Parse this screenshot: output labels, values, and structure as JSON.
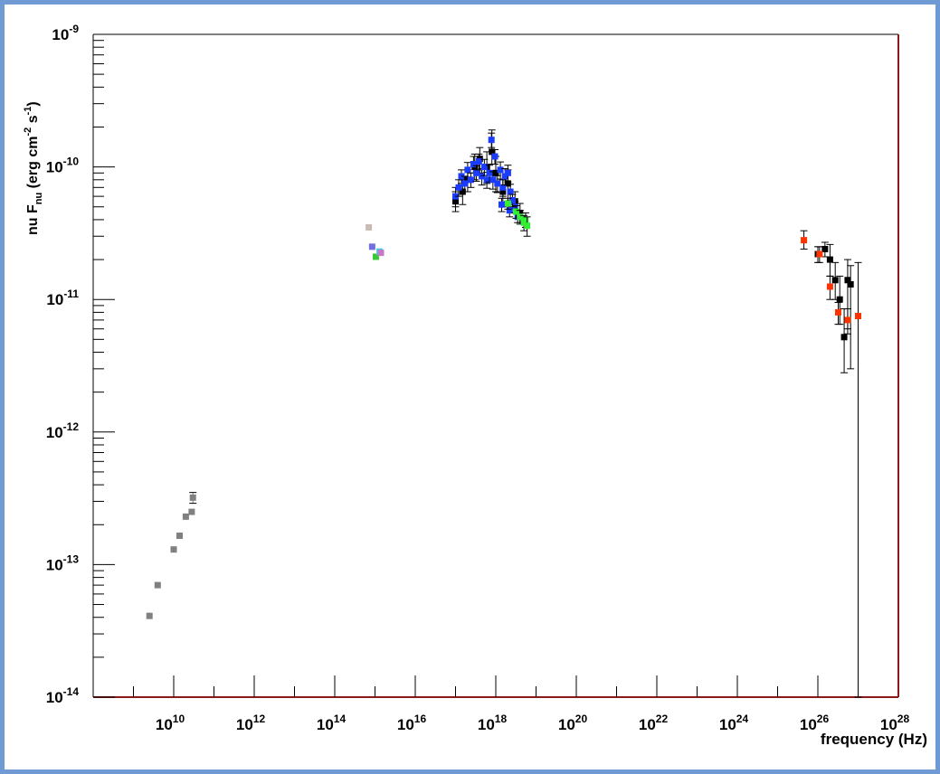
{
  "chart_data": {
    "type": "scatter",
    "xlabel": "frequency (Hz)",
    "ylabel": "nu F_nu (erg cm^-2 s^-1)",
    "xscale": "log",
    "yscale": "log",
    "xlim": [
      100000000.0,
      1e+28
    ],
    "ylim": [
      1e-14,
      1e-09
    ],
    "x_tick_labels": [
      {
        "exp": 10,
        "label": "10",
        "sup": "10"
      },
      {
        "exp": 12,
        "label": "10",
        "sup": "12"
      },
      {
        "exp": 14,
        "label": "10",
        "sup": "14"
      },
      {
        "exp": 16,
        "label": "10",
        "sup": "16"
      },
      {
        "exp": 18,
        "label": "10",
        "sup": "18"
      },
      {
        "exp": 20,
        "label": "10",
        "sup": "20"
      },
      {
        "exp": 22,
        "label": "10",
        "sup": "22"
      },
      {
        "exp": 24,
        "label": "10",
        "sup": "24"
      },
      {
        "exp": 26,
        "label": "10",
        "sup": "26"
      },
      {
        "exp": 28,
        "label": "10",
        "sup": "28"
      }
    ],
    "y_tick_labels": [
      {
        "exp": -14,
        "label": "10",
        "sup": "-14"
      },
      {
        "exp": -13,
        "label": "10",
        "sup": "-13"
      },
      {
        "exp": -12,
        "label": "10",
        "sup": "-12"
      },
      {
        "exp": -11,
        "label": "10",
        "sup": "-11"
      },
      {
        "exp": -10,
        "label": "10",
        "sup": "-10"
      },
      {
        "exp": -9,
        "label": "10",
        "sup": "-9"
      }
    ],
    "series": [
      {
        "color": "#808080",
        "points": [
          {
            "x": 2500000000.0,
            "y": 4.1e-14
          },
          {
            "x": 4000000000.0,
            "y": 7e-14
          },
          {
            "x": 10000000000.0,
            "y": 1.3e-13
          },
          {
            "x": 14000000000.0,
            "y": 1.65e-13
          },
          {
            "x": 20000000000.0,
            "y": 2.3e-13
          },
          {
            "x": 28000000000.0,
            "y": 2.5e-13
          },
          {
            "x": 30000000000.0,
            "y": 3.2e-13,
            "yerr": [
              2.9e-13,
              3.5e-13
            ]
          }
        ]
      },
      {
        "color": "#c8bcb4",
        "points": [
          {
            "x": 700000000000000.0,
            "y": 3.5e-11
          }
        ]
      },
      {
        "color": "#7070e0",
        "points": [
          {
            "x": 850000000000000.0,
            "y": 2.5e-11
          }
        ]
      },
      {
        "color": "#38c838",
        "points": [
          {
            "x": 1050000000000000.0,
            "y": 2.1e-11
          }
        ]
      },
      {
        "color": "#40d0e0",
        "points": [
          {
            "x": 1300000000000000.0,
            "y": 2.3e-11
          }
        ]
      },
      {
        "color": "#c878c8",
        "points": [
          {
            "x": 1400000000000000.0,
            "y": 2.25e-11
          }
        ]
      },
      {
        "color": "#000000",
        "points": [
          {
            "x": 1e+17,
            "y": 5.5e-11,
            "yerr": [
              4.6e-11,
              6.5e-11
            ]
          },
          {
            "x": 1.5e+17,
            "y": 6.5e-11,
            "yerr": [
              5.2e-11,
              8e-11
            ]
          },
          {
            "x": 2e+17,
            "y": 8e-11,
            "yerr": [
              6.5e-11,
              9.5e-11
            ]
          },
          {
            "x": 3e+17,
            "y": 1e-10,
            "yerr": [
              8e-11,
              1.25e-10
            ]
          },
          {
            "x": 4e+17,
            "y": 1.15e-10,
            "yerr": [
              9e-11,
              1.4e-10
            ]
          },
          {
            "x": 6e+17,
            "y": 1e-10,
            "yerr": [
              7.5e-11,
              1.3e-10
            ]
          },
          {
            "x": 8e+17,
            "y": 1.3e-10,
            "yerr": [
              1.05e-10,
              1.9e-10
            ]
          },
          {
            "x": 1e+18,
            "y": 9e-11,
            "yerr": [
              6.5e-11,
              1.2e-10
            ]
          },
          {
            "x": 1.5e+18,
            "y": 6.5e-11,
            "yerr": [
              5e-11,
              8e-11
            ]
          },
          {
            "x": 2e+18,
            "y": 7.5e-11,
            "yerr": [
              5.5e-11,
              9.5e-11
            ]
          },
          {
            "x": 3e+18,
            "y": 5.5e-11,
            "yerr": [
              4.5e-11,
              6.5e-11
            ]
          },
          {
            "x": 4e+18,
            "y": 4.5e-11,
            "yerr": [
              3.8e-11,
              5.3e-11
            ]
          }
        ]
      },
      {
        "color": "#1a3cff",
        "points": [
          {
            "x": 1e+17,
            "y": 6e-11,
            "yerr": [
              5e-11,
              7e-11
            ]
          },
          {
            "x": 1.2e+17,
            "y": 7e-11,
            "yerr": [
              6e-11,
              8e-11
            ]
          },
          {
            "x": 1.4e+17,
            "y": 8.5e-11,
            "yerr": [
              7.5e-11,
              9.5e-11
            ]
          },
          {
            "x": 1.7e+17,
            "y": 7.5e-11,
            "yerr": [
              6.5e-11,
              8.5e-11
            ]
          },
          {
            "x": 2e+17,
            "y": 9.5e-11,
            "yerr": [
              8.2e-11,
              1.08e-10
            ]
          },
          {
            "x": 2.4e+17,
            "y": 8e-11,
            "yerr": [
              7e-11,
              9e-11
            ]
          },
          {
            "x": 2.8e+17,
            "y": 1.05e-10,
            "yerr": [
              9e-11,
              1.2e-10
            ]
          },
          {
            "x": 3.3e+17,
            "y": 9e-11,
            "yerr": [
              7.8e-11,
              1.02e-10
            ]
          },
          {
            "x": 3.8e+17,
            "y": 1.1e-10,
            "yerr": [
              9.5e-11,
              1.25e-10
            ]
          },
          {
            "x": 4.5e+17,
            "y": 8.5e-11,
            "yerr": [
              7.3e-11,
              9.7e-11
            ]
          },
          {
            "x": 5.2e+17,
            "y": 1e-10,
            "yerr": [
              8.6e-11,
              1.14e-10
            ]
          },
          {
            "x": 6e+17,
            "y": 8e-11,
            "yerr": [
              6.9e-11,
              9.1e-11
            ]
          },
          {
            "x": 7e+17,
            "y": 9e-11,
            "yerr": [
              7.7e-11,
              1.03e-10
            ]
          },
          {
            "x": 7.8e+17,
            "y": 1.6e-10,
            "yerr": [
              1.4e-10,
              1.8e-10
            ]
          },
          {
            "x": 8.5e+17,
            "y": 8e-11,
            "yerr": [
              6.8e-11,
              9.2e-11
            ]
          },
          {
            "x": 9.5e+17,
            "y": 1.2e-10,
            "yerr": [
              1.05e-10,
              1.35e-10
            ]
          },
          {
            "x": 1.1e+18,
            "y": 7.5e-11,
            "yerr": [
              6.4e-11,
              8.6e-11
            ]
          },
          {
            "x": 1.3e+18,
            "y": 9.5e-11,
            "yerr": [
              8.1e-11,
              1.09e-10
            ]
          },
          {
            "x": 1.5e+18,
            "y": 7e-11,
            "yerr": [
              6e-11,
              8e-11
            ]
          },
          {
            "x": 1.7e+18,
            "y": 8.5e-11,
            "yerr": [
              7.3e-11,
              9.7e-11
            ]
          },
          {
            "x": 2e+18,
            "y": 9e-11,
            "yerr": [
              7.7e-11,
              1.03e-10
            ]
          },
          {
            "x": 2.3e+18,
            "y": 6.5e-11,
            "yerr": [
              5.6e-11,
              7.4e-11
            ]
          },
          {
            "x": 1.4e+18,
            "y": 5.2e-11,
            "yerr": [
              4.6e-11,
              5.8e-11
            ]
          },
          {
            "x": 2.2e+18,
            "y": 4.7e-11,
            "yerr": [
              4.2e-11,
              5.2e-11
            ]
          },
          {
            "x": 3e+18,
            "y": 5e-11,
            "yerr": [
              4.5e-11,
              5.5e-11
            ]
          },
          {
            "x": 3.5e+18,
            "y": 4.2e-11,
            "yerr": [
              3.8e-11,
              4.6e-11
            ]
          },
          {
            "x": 2.6e+18,
            "y": 5.6e-11,
            "yerr": [
              5e-11,
              6.2e-11
            ]
          }
        ]
      },
      {
        "color": "#33ee33",
        "points": [
          {
            "x": 2e+18,
            "y": 5.3e-11,
            "yerr": [
              4.8e-11,
              5.8e-11
            ]
          },
          {
            "x": 3.2e+18,
            "y": 4.6e-11,
            "yerr": [
              4.1e-11,
              5.1e-11
            ]
          },
          {
            "x": 4e+18,
            "y": 4.2e-11,
            "yerr": [
              3.7e-11,
              4.7e-11
            ]
          },
          {
            "x": 5e+18,
            "y": 3.8e-11,
            "yerr": [
              3.3e-11,
              4.3e-11
            ]
          },
          {
            "x": 5.5e+18,
            "y": 4e-11,
            "yerr": [
              3.5e-11,
              4.5e-11
            ]
          },
          {
            "x": 6e+18,
            "y": 3.6e-11,
            "yerr": [
              3e-11,
              4.2e-11
            ]
          }
        ]
      },
      {
        "color": "#000000",
        "points": [
          {
            "x": 1e+26,
            "y": 2.2e-11,
            "yerr": [
              1.9e-11,
              2.5e-11
            ]
          },
          {
            "x": 1.5e+26,
            "y": 2.4e-11,
            "yerr": [
              2.1e-11,
              2.7e-11
            ]
          },
          {
            "x": 2e+26,
            "y": 2e-11,
            "yerr": [
              1.5e-11,
              2.6e-11
            ]
          },
          {
            "x": 2.7e+26,
            "y": 1.4e-11,
            "yerr": [
              1e-11,
              1.9e-11
            ]
          },
          {
            "x": 3.5e+26,
            "y": 1e-11,
            "yerr": [
              6.5e-12,
              1.5e-11
            ]
          },
          {
            "x": 4.5e+26,
            "y": 5.2e-12,
            "yerr": [
              2.8e-12,
              8.5e-12
            ]
          },
          {
            "x": 5.5e+26,
            "y": 1.4e-11,
            "yerr": [
              6e-12,
              2e-11
            ]
          },
          {
            "x": 6.5e+26,
            "y": 1.3e-11,
            "yerr": [
              3e-12,
              1.8e-11
            ]
          }
        ]
      },
      {
        "color": "#ff3300",
        "points": [
          {
            "x": 4.5e+25,
            "y": 2.8e-11,
            "yerr": [
              2.4e-11,
              3.3e-11
            ]
          },
          {
            "x": 1.1e+26,
            "y": 2.2e-11,
            "yerr": [
              1.9e-11,
              2.5e-11
            ]
          },
          {
            "x": 2e+26,
            "y": 1.25e-11,
            "yerr": [
              1e-11,
              1.5e-11
            ]
          },
          {
            "x": 3.2e+26,
            "y": 8e-12,
            "yerr": [
              6.5e-12,
              9.5e-12
            ]
          },
          {
            "x": 5.5e+26,
            "y": 7e-12,
            "yerr": [
              5.5e-12,
              8.5e-12
            ]
          },
          {
            "x": 1e+27,
            "y": 7.5e-12,
            "yerr": [
              1e-14,
              1.9e-11
            ]
          }
        ]
      }
    ]
  }
}
